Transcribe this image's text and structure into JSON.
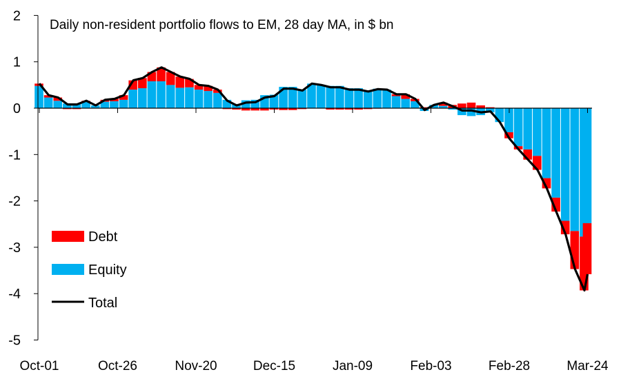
{
  "chart_data": {
    "type": "bar",
    "stacked": true,
    "title": "Daily non-resident portfolio flows to EM, 28 day MA, in $ bn",
    "xlabel": "",
    "ylabel": "",
    "ylim": [
      -5,
      2
    ],
    "yticks": [
      2,
      1,
      0,
      -1,
      -2,
      -3,
      -4,
      -5
    ],
    "xtick_labels": [
      "Oct-01",
      "Oct-26",
      "Nov-20",
      "Dec-15",
      "Jan-09",
      "Feb-03",
      "Feb-28",
      "Mar-24"
    ],
    "grid": false,
    "legend_position": "bottom-left",
    "colors": {
      "Debt": "#ff0000",
      "Equity": "#00b0f0",
      "Total": "#000000"
    },
    "dates": [
      "Oct-01",
      "Oct-04",
      "Oct-07",
      "Oct-10",
      "Oct-13",
      "Oct-16",
      "Oct-19",
      "Oct-22",
      "Oct-25",
      "Oct-28",
      "Oct-31",
      "Nov-03",
      "Nov-06",
      "Nov-09",
      "Nov-12",
      "Nov-15",
      "Nov-18",
      "Nov-21",
      "Nov-24",
      "Nov-27",
      "Nov-30",
      "Dec-03",
      "Dec-06",
      "Dec-09",
      "Dec-12",
      "Dec-15",
      "Dec-18",
      "Dec-21",
      "Dec-24",
      "Dec-27",
      "Dec-30",
      "Jan-02",
      "Jan-05",
      "Jan-08",
      "Jan-11",
      "Jan-14",
      "Jan-17",
      "Jan-20",
      "Jan-23",
      "Jan-26",
      "Jan-29",
      "Feb-01",
      "Feb-04",
      "Feb-07",
      "Feb-10",
      "Feb-13",
      "Feb-16",
      "Feb-19",
      "Feb-22",
      "Feb-25",
      "Feb-28",
      "Mar-02",
      "Mar-05",
      "Mar-08",
      "Mar-11",
      "Mar-14",
      "Mar-17",
      "Mar-20",
      "Mar-23",
      "Mar-24"
    ],
    "series": [
      {
        "name": "Debt",
        "kind": "bar",
        "values": [
          0.05,
          0.05,
          0.07,
          -0.02,
          -0.02,
          0.01,
          0,
          0.04,
          0.05,
          0.1,
          0.2,
          0.22,
          0.2,
          0.3,
          0.28,
          0.24,
          0.18,
          0.1,
          0.11,
          0.07,
          -0.02,
          -0.03,
          -0.05,
          -0.05,
          -0.05,
          -0.03,
          -0.04,
          -0.04,
          -0.02,
          0,
          0,
          -0.03,
          -0.03,
          -0.03,
          -0.03,
          -0.02,
          -0.01,
          0,
          0.04,
          0.1,
          0.05,
          0.02,
          0,
          0.07,
          0.07,
          0.1,
          0.12,
          0.06,
          0.02,
          0,
          -0.13,
          -0.07,
          -0.22,
          -0.3,
          -0.22,
          -0.3,
          -0.29,
          -0.82,
          -1.16,
          -1.1
        ]
      },
      {
        "name": "Equity",
        "kind": "bar",
        "values": [
          0.48,
          0.23,
          0.16,
          0.1,
          0.1,
          0.15,
          0.06,
          0.14,
          0.15,
          0.18,
          0.4,
          0.43,
          0.58,
          0.58,
          0.5,
          0.44,
          0.45,
          0.4,
          0.37,
          0.33,
          0.18,
          0.09,
          0.17,
          0.18,
          0.28,
          0.29,
          0.46,
          0.46,
          0.4,
          0.53,
          0.5,
          0.48,
          0.48,
          0.43,
          0.43,
          0.38,
          0.42,
          0.4,
          0.26,
          0.2,
          0.15,
          -0.06,
          0.07,
          0.05,
          -0.03,
          -0.15,
          -0.17,
          -0.15,
          -0.09,
          -0.3,
          -0.52,
          -0.82,
          -0.89,
          -1.03,
          -1.51,
          -1.93,
          -2.43,
          -2.65,
          -2.77,
          -2.48
        ]
      },
      {
        "name": "Total",
        "kind": "line",
        "values": [
          0.53,
          0.28,
          0.23,
          0.08,
          0.08,
          0.16,
          0.06,
          0.18,
          0.2,
          0.28,
          0.6,
          0.65,
          0.78,
          0.88,
          0.78,
          0.68,
          0.63,
          0.5,
          0.48,
          0.4,
          0.16,
          0.06,
          0.12,
          0.13,
          0.23,
          0.26,
          0.42,
          0.42,
          0.38,
          0.53,
          0.5,
          0.45,
          0.45,
          0.4,
          0.4,
          0.36,
          0.41,
          0.4,
          0.3,
          0.3,
          0.2,
          -0.04,
          0.07,
          0.12,
          0.04,
          -0.05,
          -0.05,
          -0.09,
          -0.07,
          -0.3,
          -0.65,
          -0.89,
          -1.11,
          -1.33,
          -1.73,
          -2.23,
          -2.72,
          -3.47,
          -3.93,
          -3.58
        ]
      }
    ]
  }
}
